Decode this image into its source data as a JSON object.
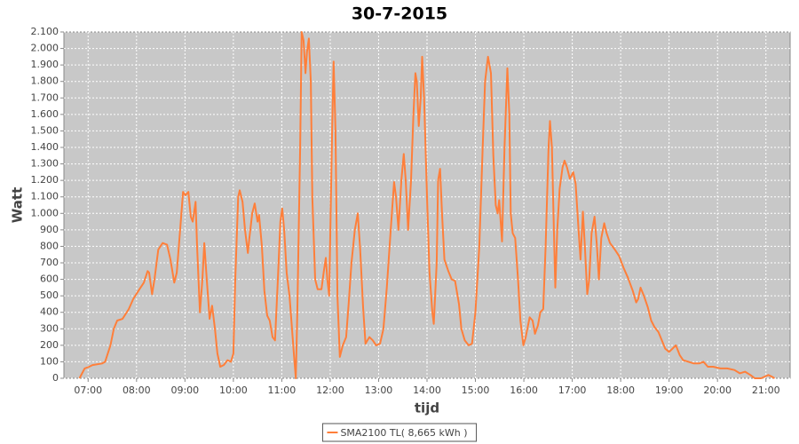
{
  "chart_data": {
    "type": "line",
    "title": "30-7-2015",
    "x_label": "tijd",
    "y_label": "Watt",
    "x": [
      6.82,
      6.93,
      7.02,
      7.09,
      7.29,
      7.35,
      7.46,
      7.53,
      7.6,
      7.71,
      7.84,
      7.93,
      8.06,
      8.15,
      8.23,
      8.26,
      8.32,
      8.37,
      8.45,
      8.54,
      8.63,
      8.7,
      8.78,
      8.83,
      8.9,
      8.96,
      9.01,
      9.07,
      9.12,
      9.16,
      9.22,
      9.25,
      9.31,
      9.36,
      9.4,
      9.45,
      9.51,
      9.56,
      9.62,
      9.67,
      9.73,
      9.8,
      9.88,
      9.95,
      10.0,
      10.04,
      10.1,
      10.13,
      10.19,
      10.24,
      10.3,
      10.33,
      10.39,
      10.44,
      10.5,
      10.53,
      10.59,
      10.64,
      10.7,
      10.75,
      10.81,
      10.86,
      10.92,
      10.97,
      11.01,
      11.05,
      11.1,
      11.16,
      11.19,
      11.25,
      11.29,
      11.32,
      11.38,
      11.41,
      11.45,
      11.49,
      11.52,
      11.56,
      11.6,
      11.63,
      11.69,
      11.74,
      11.82,
      11.87,
      11.91,
      11.94,
      11.98,
      12.04,
      12.07,
      12.11,
      12.15,
      12.2,
      12.26,
      12.33,
      12.38,
      12.44,
      12.51,
      12.57,
      12.62,
      12.68,
      12.73,
      12.81,
      12.88,
      12.95,
      13.03,
      13.1,
      13.17,
      13.25,
      13.32,
      13.36,
      13.41,
      13.47,
      13.52,
      13.56,
      13.61,
      13.67,
      13.72,
      13.76,
      13.79,
      13.83,
      13.87,
      13.9,
      13.94,
      14.0,
      14.05,
      14.11,
      14.14,
      14.2,
      14.23,
      14.27,
      14.31,
      14.36,
      14.44,
      14.51,
      14.58,
      14.66,
      14.71,
      14.78,
      14.86,
      14.93,
      15.0,
      15.08,
      15.15,
      15.2,
      15.26,
      15.32,
      15.37,
      15.42,
      15.46,
      15.49,
      15.55,
      15.6,
      15.66,
      15.7,
      15.73,
      15.77,
      15.82,
      15.88,
      15.93,
      15.99,
      16.04,
      16.12,
      16.18,
      16.23,
      16.29,
      16.34,
      16.4,
      16.45,
      16.51,
      16.54,
      16.58,
      16.62,
      16.65,
      16.69,
      16.74,
      16.8,
      16.84,
      16.89,
      16.95,
      17.02,
      17.07,
      17.13,
      17.17,
      17.22,
      17.26,
      17.31,
      17.35,
      17.4,
      17.46,
      17.51,
      17.55,
      17.6,
      17.66,
      17.71,
      17.78,
      17.88,
      17.97,
      18.06,
      18.15,
      18.25,
      18.32,
      18.36,
      18.41,
      18.48,
      18.56,
      18.63,
      18.7,
      18.78,
      18.85,
      18.92,
      19.0,
      19.07,
      19.14,
      19.22,
      19.29,
      19.4,
      19.51,
      19.62,
      19.71,
      19.8,
      19.91,
      20.06,
      20.2,
      20.35,
      20.46,
      20.57,
      20.68,
      20.77,
      20.9,
      21.05,
      21.12,
      21.18
    ],
    "series": [
      {
        "name": "SMA2100 TL( 8,665 kWh )",
        "color": "#ff7f3a",
        "values": [
          0,
          60,
          70,
          80,
          90,
          100,
          200,
          300,
          350,
          360,
          420,
          480,
          540,
          580,
          650,
          640,
          510,
          600,
          780,
          820,
          810,
          720,
          580,
          640,
          900,
          1130,
          1110,
          1130,
          980,
          950,
          1070,
          800,
          400,
          600,
          820,
          600,
          360,
          440,
          300,
          150,
          70,
          80,
          110,
          100,
          150,
          600,
          1100,
          1140,
          1070,
          900,
          760,
          850,
          1000,
          1060,
          950,
          990,
          800,
          530,
          380,
          350,
          250,
          230,
          600,
          950,
          1030,
          900,
          640,
          500,
          380,
          150,
          0,
          400,
          1400,
          2100,
          2050,
          1850,
          1980,
          2060,
          1800,
          1100,
          600,
          540,
          540,
          650,
          730,
          600,
          500,
          1500,
          1920,
          1500,
          500,
          130,
          200,
          250,
          450,
          700,
          900,
          1000,
          780,
          430,
          210,
          250,
          230,
          200,
          210,
          300,
          550,
          900,
          1190,
          1100,
          900,
          1200,
          1360,
          1200,
          900,
          1200,
          1600,
          1850,
          1800,
          1530,
          1700,
          1950,
          1700,
          1100,
          650,
          400,
          330,
          700,
          1200,
          1270,
          1000,
          720,
          650,
          600,
          590,
          450,
          300,
          230,
          200,
          210,
          400,
          800,
          1400,
          1800,
          1950,
          1850,
          1350,
          1050,
          1000,
          1080,
          830,
          1400,
          1880,
          1600,
          1000,
          880,
          850,
          600,
          350,
          200,
          250,
          370,
          350,
          270,
          320,
          400,
          420,
          800,
          1400,
          1560,
          1400,
          900,
          550,
          900,
          1150,
          1280,
          1320,
          1280,
          1210,
          1250,
          1180,
          900,
          720,
          1010,
          800,
          510,
          600,
          880,
          980,
          800,
          600,
          850,
          940,
          880,
          820,
          780,
          740,
          670,
          610,
          530,
          460,
          480,
          550,
          500,
          430,
          350,
          310,
          280,
          230,
          180,
          160,
          180,
          200,
          140,
          110,
          100,
          90,
          90,
          100,
          70,
          70,
          60,
          60,
          50,
          30,
          40,
          20,
          0,
          0,
          20,
          10,
          0
        ]
      }
    ],
    "xlim": [
      6.5,
      21.5
    ],
    "xticks": [
      {
        "value": 7,
        "label": "07:00"
      },
      {
        "value": 8,
        "label": "08:00"
      },
      {
        "value": 9,
        "label": "09:00"
      },
      {
        "value": 10,
        "label": "10:00"
      },
      {
        "value": 11,
        "label": "11:00"
      },
      {
        "value": 12,
        "label": "12:00"
      },
      {
        "value": 13,
        "label": "13:00"
      },
      {
        "value": 14,
        "label": "14:00"
      },
      {
        "value": 15,
        "label": "15:00"
      },
      {
        "value": 16,
        "label": "16:00"
      },
      {
        "value": 17,
        "label": "17:00"
      },
      {
        "value": 18,
        "label": "18:00"
      },
      {
        "value": 19,
        "label": "19:00"
      },
      {
        "value": 20,
        "label": "20:00"
      },
      {
        "value": 21,
        "label": "21:00"
      }
    ],
    "ylim": [
      0,
      2100
    ],
    "yticks": [
      0,
      100,
      200,
      300,
      400,
      500,
      600,
      700,
      800,
      900,
      {
        "value": 1000,
        "label": "1.000"
      },
      {
        "value": 1100,
        "label": "1.100"
      },
      {
        "value": 1200,
        "label": "1.200"
      },
      {
        "value": 1300,
        "label": "1.300"
      },
      {
        "value": 1400,
        "label": "1.400"
      },
      {
        "value": 1500,
        "label": "1.500"
      },
      {
        "value": 1600,
        "label": "1.600"
      },
      {
        "value": 1700,
        "label": "1.700"
      },
      {
        "value": 1800,
        "label": "1.800"
      },
      {
        "value": 1900,
        "label": "1.900"
      },
      {
        "value": 2000,
        "label": "2.000"
      },
      {
        "value": 2100,
        "label": "2.100"
      }
    ],
    "grid": true,
    "legend": "bottom"
  }
}
